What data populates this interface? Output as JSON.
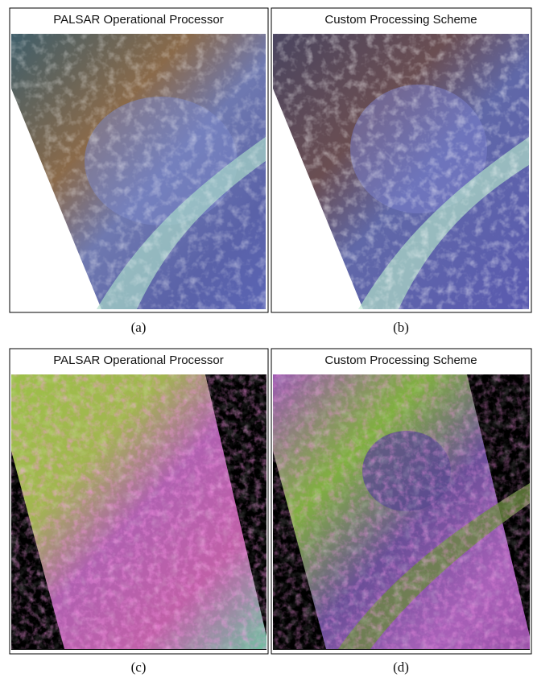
{
  "panels": [
    {
      "title": "PALSAR Operational Processor",
      "caption": "(a)"
    },
    {
      "title": "Custom Processing Scheme",
      "caption": "(b)"
    },
    {
      "title": "PALSAR Operational Processor",
      "caption": "(c)"
    },
    {
      "title": "Custom Processing Scheme",
      "caption": "(d)"
    }
  ]
}
